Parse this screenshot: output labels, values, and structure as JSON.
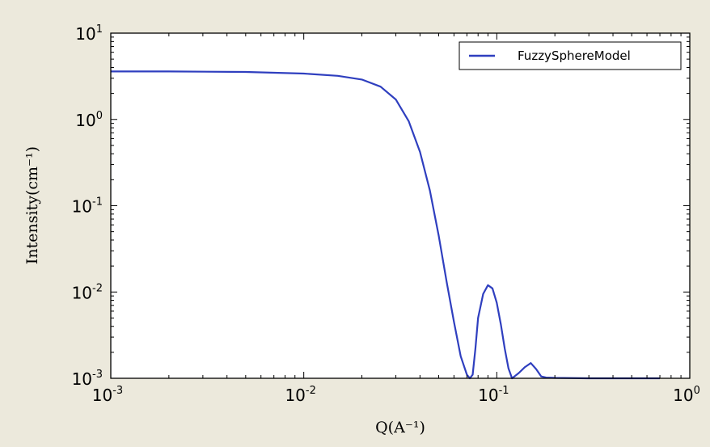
{
  "chart_data": {
    "type": "line",
    "xscale": "log",
    "yscale": "log",
    "xlim": [
      0.001,
      1
    ],
    "ylim": [
      0.001,
      10
    ],
    "xlabel": "Q(A⁻¹)",
    "ylabel": "Intensity(cm⁻¹)",
    "xticks": [
      {
        "base": "10",
        "exp": "-3"
      },
      {
        "base": "10",
        "exp": "-2"
      },
      {
        "base": "10",
        "exp": "-1"
      },
      {
        "base": "10",
        "exp": "0"
      }
    ],
    "yticks": [
      {
        "base": "10",
        "exp": "-3"
      },
      {
        "base": "10",
        "exp": "-2"
      },
      {
        "base": "10",
        "exp": "-1"
      },
      {
        "base": "10",
        "exp": "0"
      },
      {
        "base": "10",
        "exp": "1"
      }
    ],
    "legend_position": "top-right",
    "grid": false,
    "series": [
      {
        "name": "FuzzySphereModel",
        "color": "#2f3fbf",
        "x": [
          0.001,
          0.002,
          0.005,
          0.01,
          0.015,
          0.02,
          0.025,
          0.03,
          0.035,
          0.04,
          0.045,
          0.05,
          0.055,
          0.06,
          0.065,
          0.07,
          0.0725,
          0.075,
          0.0775,
          0.08,
          0.085,
          0.09,
          0.095,
          0.1,
          0.105,
          0.11,
          0.115,
          0.12,
          0.13,
          0.14,
          0.15,
          0.16,
          0.17,
          0.18,
          0.2,
          0.3,
          0.5,
          0.7
        ],
        "y": [
          3.6,
          3.6,
          3.55,
          3.4,
          3.2,
          2.9,
          2.4,
          1.7,
          0.95,
          0.42,
          0.15,
          0.045,
          0.013,
          0.0045,
          0.0018,
          0.0011,
          0.001,
          0.0011,
          0.0022,
          0.005,
          0.0095,
          0.012,
          0.011,
          0.0075,
          0.0042,
          0.0022,
          0.0013,
          0.001,
          0.00115,
          0.00135,
          0.0015,
          0.00128,
          0.00105,
          0.00102,
          0.00101,
          0.001,
          0.001,
          0.001
        ]
      }
    ]
  }
}
